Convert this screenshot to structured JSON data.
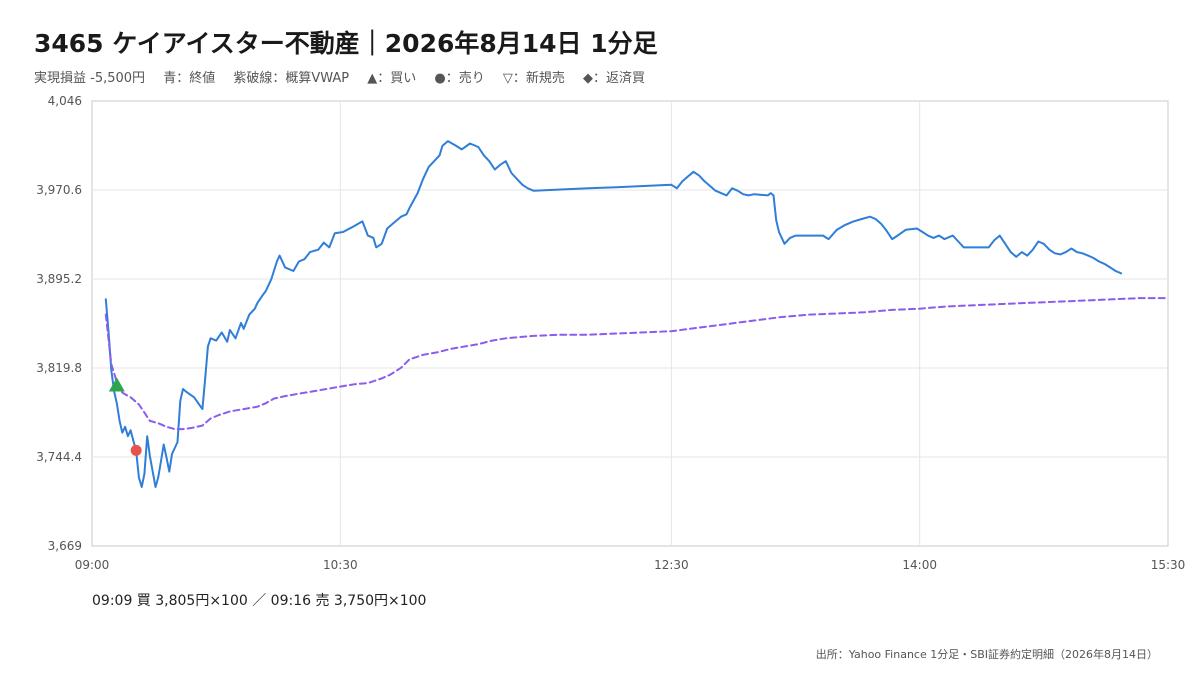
{
  "title": "3465 ケイアイスター不動産｜2026年8月14日 1分足",
  "legend": {
    "pnl": "実現損益 -5,500円",
    "blue": "青：終値",
    "purple": "紫破線：概算VWAP",
    "buy": "▲：買い",
    "sell": "●：売り",
    "new_sell": "▽：新規売",
    "repay": "◆：返済買"
  },
  "trades_text": "09:09 買 3,805円×100 ／ 09:16 売 3,750円×100",
  "source": "出所：Yahoo Finance 1分足・SBI証券約定明細（2026年8月14日）",
  "colors": {
    "close": "#2f7ed8",
    "vwap": "#8a5cf0",
    "buy": "#2da44e",
    "sell": "#e5534b"
  },
  "chart_data": {
    "type": "line",
    "x_unit": "time (HH:MM)",
    "xlim": [
      "09:00",
      "15:30"
    ],
    "ylim": [
      3669,
      4046
    ],
    "yticks": [
      "3,669",
      "3,744.4",
      "3,819.8",
      "3,895.2",
      "3,970.6",
      "4,046"
    ],
    "xticks": [
      "09:00",
      "10:30",
      "12:30",
      "14:00",
      "15:30"
    ],
    "grid": true,
    "series": [
      {
        "name": "終値",
        "style": "solid",
        "points": [
          [
            "09:05",
            3878
          ],
          [
            "09:06",
            3850
          ],
          [
            "09:07",
            3818
          ],
          [
            "09:08",
            3800
          ],
          [
            "09:09",
            3790
          ],
          [
            "09:10",
            3775
          ],
          [
            "09:11",
            3765
          ],
          [
            "09:12",
            3770
          ],
          [
            "09:13",
            3762
          ],
          [
            "09:14",
            3767
          ],
          [
            "09:15",
            3758
          ],
          [
            "09:16",
            3750
          ],
          [
            "09:17",
            3727
          ],
          [
            "09:18",
            3719
          ],
          [
            "09:19",
            3730
          ],
          [
            "09:20",
            3762
          ],
          [
            "09:21",
            3745
          ],
          [
            "09:22",
            3732
          ],
          [
            "09:23",
            3719
          ],
          [
            "09:24",
            3727
          ],
          [
            "09:25",
            3741
          ],
          [
            "09:26",
            3755
          ],
          [
            "09:27",
            3744
          ],
          [
            "09:28",
            3732
          ],
          [
            "09:29",
            3747
          ],
          [
            "09:30",
            3752
          ],
          [
            "09:31",
            3757
          ],
          [
            "09:32",
            3792
          ],
          [
            "09:33",
            3802
          ],
          [
            "09:34",
            3800
          ],
          [
            "09:37",
            3795
          ],
          [
            "09:40",
            3785
          ],
          [
            "09:41",
            3810
          ],
          [
            "09:42",
            3838
          ],
          [
            "09:43",
            3845
          ],
          [
            "09:45",
            3843
          ],
          [
            "09:47",
            3850
          ],
          [
            "09:49",
            3842
          ],
          [
            "09:50",
            3852
          ],
          [
            "09:52",
            3845
          ],
          [
            "09:54",
            3858
          ],
          [
            "09:55",
            3853
          ],
          [
            "09:57",
            3865
          ],
          [
            "09:59",
            3870
          ],
          [
            "10:00",
            3875
          ],
          [
            "10:02",
            3882
          ],
          [
            "10:03",
            3885
          ],
          [
            "10:05",
            3895
          ],
          [
            "10:07",
            3910
          ],
          [
            "10:08",
            3915
          ],
          [
            "10:10",
            3905
          ],
          [
            "10:13",
            3902
          ],
          [
            "10:15",
            3910
          ],
          [
            "10:17",
            3912
          ],
          [
            "10:19",
            3918
          ],
          [
            "10:22",
            3920
          ],
          [
            "10:24",
            3926
          ],
          [
            "10:26",
            3922
          ],
          [
            "10:28",
            3934
          ],
          [
            "10:31",
            3935
          ],
          [
            "10:35",
            3940
          ],
          [
            "10:38",
            3944
          ],
          [
            "10:40",
            3932
          ],
          [
            "10:42",
            3930
          ],
          [
            "10:43",
            3922
          ],
          [
            "10:45",
            3925
          ],
          [
            "10:47",
            3938
          ],
          [
            "10:49",
            3942
          ],
          [
            "10:52",
            3948
          ],
          [
            "10:54",
            3950
          ],
          [
            "10:55",
            3955
          ],
          [
            "10:58",
            3968
          ],
          [
            "11:00",
            3980
          ],
          [
            "11:02",
            3990
          ],
          [
            "11:04",
            3995
          ],
          [
            "11:06",
            4000
          ],
          [
            "11:07",
            4008
          ],
          [
            "11:09",
            4012
          ],
          [
            "11:12",
            4008
          ],
          [
            "11:14",
            4005
          ],
          [
            "11:17",
            4010
          ],
          [
            "11:20",
            4007
          ],
          [
            "11:22",
            4000
          ],
          [
            "11:24",
            3995
          ],
          [
            "11:26",
            3988
          ],
          [
            "11:28",
            3992
          ],
          [
            "11:30",
            3995
          ],
          [
            "11:32",
            3985
          ],
          [
            "11:34",
            3980
          ],
          [
            "11:36",
            3975
          ],
          [
            "11:38",
            3972
          ],
          [
            "11:40",
            3970
          ],
          [
            "11:50",
            3971
          ],
          [
            "12:00",
            3972
          ],
          [
            "12:10",
            3973
          ],
          [
            "12:20",
            3974
          ],
          [
            "12:30",
            3975
          ],
          [
            "12:32",
            3972
          ],
          [
            "12:34",
            3978
          ],
          [
            "12:36",
            3982
          ],
          [
            "12:38",
            3986
          ],
          [
            "12:40",
            3983
          ],
          [
            "12:42",
            3978
          ],
          [
            "12:44",
            3974
          ],
          [
            "12:46",
            3970
          ],
          [
            "12:48",
            3968
          ],
          [
            "12:50",
            3966
          ],
          [
            "12:52",
            3972
          ],
          [
            "12:54",
            3970
          ],
          [
            "12:56",
            3967
          ],
          [
            "12:58",
            3966
          ],
          [
            "13:00",
            3967
          ],
          [
            "13:05",
            3966
          ],
          [
            "13:06",
            3968
          ],
          [
            "13:07",
            3966
          ],
          [
            "13:08",
            3945
          ],
          [
            "13:09",
            3935
          ],
          [
            "13:11",
            3925
          ],
          [
            "13:13",
            3930
          ],
          [
            "13:15",
            3932
          ],
          [
            "13:20",
            3932
          ],
          [
            "13:25",
            3932
          ],
          [
            "13:27",
            3929
          ],
          [
            "13:30",
            3937
          ],
          [
            "13:33",
            3941
          ],
          [
            "13:36",
            3944
          ],
          [
            "13:39",
            3946
          ],
          [
            "13:42",
            3948
          ],
          [
            "13:44",
            3946
          ],
          [
            "13:46",
            3942
          ],
          [
            "13:48",
            3936
          ],
          [
            "13:50",
            3929
          ],
          [
            "13:52",
            3932
          ],
          [
            "13:55",
            3937
          ],
          [
            "13:59",
            3938
          ],
          [
            "14:01",
            3935
          ],
          [
            "14:03",
            3932
          ],
          [
            "14:05",
            3930
          ],
          [
            "14:07",
            3932
          ],
          [
            "14:09",
            3929
          ],
          [
            "14:12",
            3932
          ],
          [
            "14:14",
            3927
          ],
          [
            "14:16",
            3922
          ],
          [
            "14:20",
            3922
          ],
          [
            "14:25",
            3922
          ],
          [
            "14:27",
            3928
          ],
          [
            "14:29",
            3932
          ],
          [
            "14:31",
            3925
          ],
          [
            "14:33",
            3918
          ],
          [
            "14:35",
            3914
          ],
          [
            "14:37",
            3918
          ],
          [
            "14:39",
            3915
          ],
          [
            "14:41",
            3920
          ],
          [
            "14:43",
            3927
          ],
          [
            "14:45",
            3925
          ],
          [
            "14:47",
            3920
          ],
          [
            "14:49",
            3917
          ],
          [
            "14:51",
            3916
          ],
          [
            "14:53",
            3918
          ],
          [
            "14:55",
            3921
          ],
          [
            "14:57",
            3918
          ],
          [
            "14:59",
            3917
          ],
          [
            "15:01",
            3915
          ],
          [
            "15:03",
            3913
          ],
          [
            "15:05",
            3910
          ],
          [
            "15:07",
            3908
          ],
          [
            "15:09",
            3905
          ],
          [
            "15:11",
            3902
          ],
          [
            "15:13",
            3900
          ]
        ]
      },
      {
        "name": "概算VWAP",
        "style": "dashed",
        "points": [
          [
            "09:05",
            3865
          ],
          [
            "09:07",
            3823
          ],
          [
            "09:09",
            3808
          ],
          [
            "09:11",
            3799
          ],
          [
            "09:14",
            3795
          ],
          [
            "09:17",
            3789
          ],
          [
            "09:19",
            3782
          ],
          [
            "09:21",
            3775
          ],
          [
            "09:24",
            3773
          ],
          [
            "09:27",
            3770
          ],
          [
            "09:30",
            3768
          ],
          [
            "09:33",
            3768
          ],
          [
            "09:36",
            3769
          ],
          [
            "09:40",
            3771
          ],
          [
            "09:43",
            3777
          ],
          [
            "09:46",
            3780
          ],
          [
            "09:50",
            3783
          ],
          [
            "09:55",
            3785
          ],
          [
            "10:00",
            3787
          ],
          [
            "10:03",
            3790
          ],
          [
            "10:06",
            3794
          ],
          [
            "10:10",
            3796
          ],
          [
            "10:15",
            3798
          ],
          [
            "10:20",
            3800
          ],
          [
            "10:25",
            3802
          ],
          [
            "10:30",
            3804
          ],
          [
            "10:35",
            3806
          ],
          [
            "10:40",
            3807
          ],
          [
            "10:45",
            3811
          ],
          [
            "10:48",
            3814
          ],
          [
            "10:52",
            3820
          ],
          [
            "10:55",
            3827
          ],
          [
            "11:00",
            3831
          ],
          [
            "11:05",
            3833
          ],
          [
            "11:10",
            3836
          ],
          [
            "11:15",
            3838
          ],
          [
            "11:20",
            3840
          ],
          [
            "11:25",
            3843
          ],
          [
            "11:30",
            3845
          ],
          [
            "11:40",
            3847
          ],
          [
            "11:50",
            3848
          ],
          [
            "12:00",
            3848
          ],
          [
            "12:10",
            3849
          ],
          [
            "12:20",
            3850
          ],
          [
            "12:30",
            3851
          ],
          [
            "12:40",
            3854
          ],
          [
            "12:50",
            3857
          ],
          [
            "13:00",
            3860
          ],
          [
            "13:10",
            3863
          ],
          [
            "13:20",
            3865
          ],
          [
            "13:30",
            3866
          ],
          [
            "13:40",
            3867
          ],
          [
            "13:50",
            3869
          ],
          [
            "14:00",
            3870
          ],
          [
            "14:10",
            3872
          ],
          [
            "14:20",
            3873
          ],
          [
            "14:30",
            3874
          ],
          [
            "14:40",
            3875
          ],
          [
            "14:50",
            3876
          ],
          [
            "15:00",
            3877
          ],
          [
            "15:10",
            3878
          ],
          [
            "15:20",
            3879
          ],
          [
            "15:30",
            3879
          ]
        ]
      }
    ],
    "markers": [
      {
        "type": "buy",
        "symbol": "▲",
        "x": "09:09",
        "y": 3805
      },
      {
        "type": "sell",
        "symbol": "●",
        "x": "09:16",
        "y": 3750
      }
    ]
  }
}
